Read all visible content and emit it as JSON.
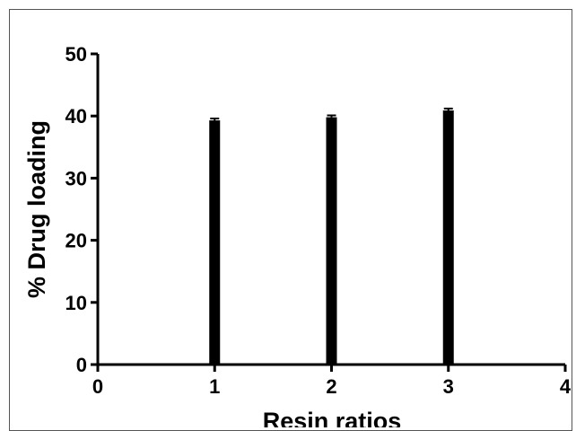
{
  "chart_data": {
    "type": "bar",
    "xlabel": "Resin ratios",
    "ylabel": "% Drug loading",
    "xlim": [
      0,
      4
    ],
    "ylim": [
      0,
      50
    ],
    "x_ticks": [
      "0",
      "1",
      "2",
      "3",
      "4"
    ],
    "y_ticks": [
      "0",
      "10",
      "20",
      "30",
      "40",
      "50"
    ],
    "x": [
      1,
      2,
      3
    ],
    "values": [
      39.3,
      39.8,
      40.9
    ],
    "error": [
      0.3,
      0.3,
      0.3
    ],
    "grid": false,
    "legend": "none",
    "bar_color": "#000000"
  }
}
